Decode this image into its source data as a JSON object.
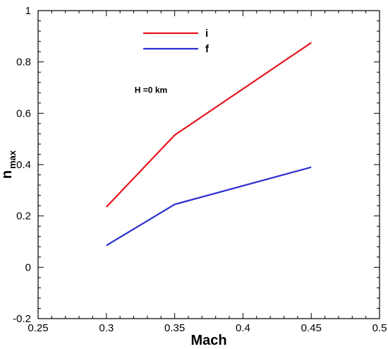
{
  "chart_data": {
    "type": "line",
    "xlabel": "Mach",
    "ylabel_main": "n",
    "ylabel_sub": "max",
    "xlim": [
      0.25,
      0.5
    ],
    "ylim": [
      -0.2,
      1.0
    ],
    "xticks": [
      0.25,
      0.3,
      0.35,
      0.4,
      0.45,
      0.5
    ],
    "xtick_labels": [
      "0.25",
      "0.3",
      "0.35",
      "0.4",
      "0.45",
      "0.5"
    ],
    "yticks": [
      -0.2,
      0,
      0.2,
      0.4,
      0.6,
      0.8,
      1.0
    ],
    "ytick_labels": [
      "-0.2",
      "0",
      "0.2",
      "0.4",
      "0.6",
      "0.8",
      "1"
    ],
    "grid": false,
    "legend_position": "top-center",
    "series": [
      {
        "name": "i",
        "color": "#e8141c",
        "x": [
          0.3,
          0.35,
          0.45
        ],
        "y": [
          0.235,
          0.515,
          0.875
        ]
      },
      {
        "name": "f",
        "color": "#2b2fd0",
        "x": [
          0.3,
          0.35,
          0.45
        ],
        "y": [
          0.085,
          0.245,
          0.39
        ]
      }
    ],
    "annotations": [
      {
        "text": "H =0 km",
        "x": 0.3,
        "y": 0.68
      }
    ]
  }
}
